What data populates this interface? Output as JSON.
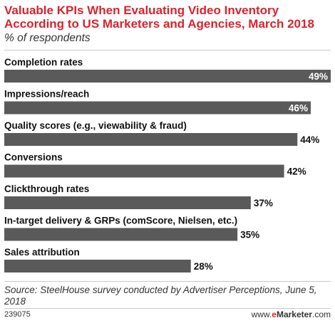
{
  "title": "Valuable KPIs When Evaluating Video Inventory According to US Marketers and Agencies, March 2018",
  "subtitle": "% of respondents",
  "source": "Source: SteelHouse survey conducted by Advertiser Perceptions, June 5, 2018",
  "chart_id": "239075",
  "brand": {
    "prefix": "www.",
    "e": "e",
    "name": "Marketer",
    "suffix": ".com"
  },
  "colors": {
    "bar": "#5a5a5a",
    "title": "#d9232e",
    "value_inside": "#ffffff",
    "value_outside": "#111111"
  },
  "chart_data": {
    "type": "bar",
    "orientation": "horizontal",
    "title": "Valuable KPIs When Evaluating Video Inventory According to US Marketers and Agencies, March 2018",
    "subtitle": "% of respondents",
    "categories": [
      "Completion rates",
      "Impressions/reach",
      "Quality scores (e.g., viewability & fraud)",
      "Conversions",
      "Clickthrough rates",
      "In-target delivery & GRPs (comScore, Nielsen, etc.)",
      "Sales attribution"
    ],
    "values": [
      49,
      46,
      44,
      42,
      37,
      35,
      28
    ],
    "value_labels": [
      "49%",
      "46%",
      "44%",
      "42%",
      "37%",
      "35%",
      "28%"
    ],
    "xlim": [
      0,
      49
    ],
    "grid": false,
    "legend": "none"
  }
}
